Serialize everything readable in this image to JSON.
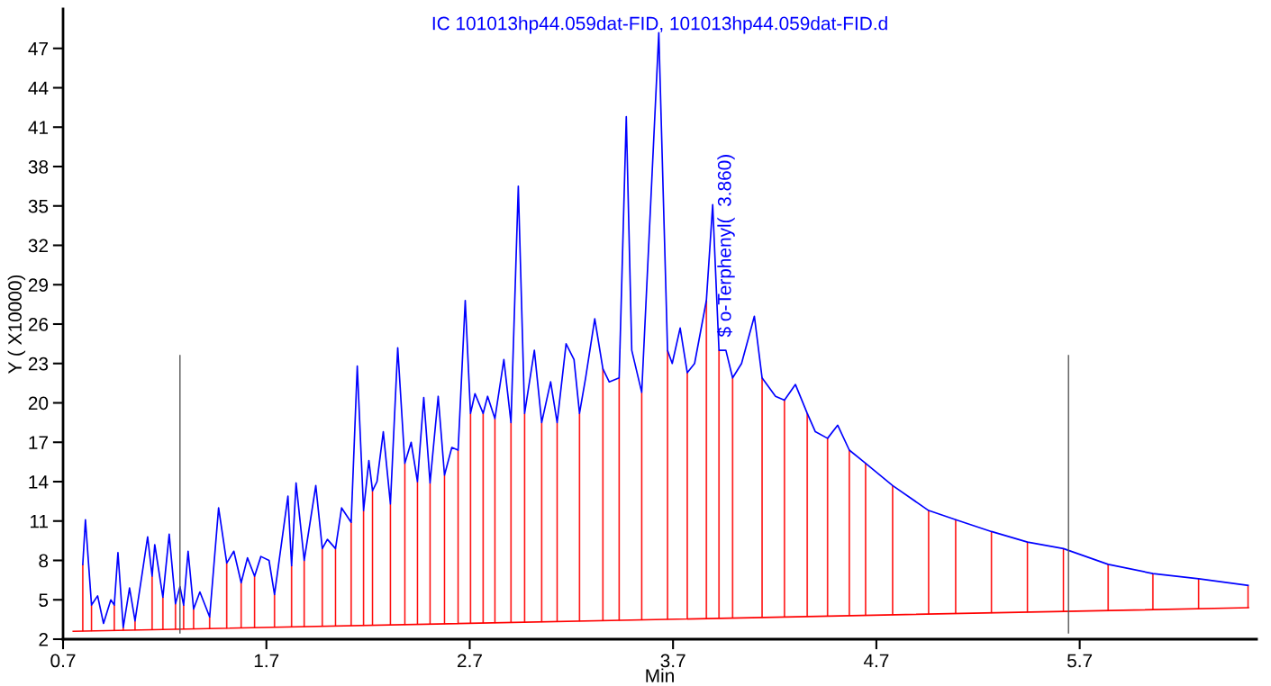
{
  "chart_data": {
    "type": "line",
    "title": "IC 101013hp44.059dat-FID, 101013hp44.059dat-FID.d",
    "xlabel": "Min",
    "ylabel": "Y ( X10000)",
    "xlim": [
      0.7,
      6.57
    ],
    "ylim": [
      2,
      50
    ],
    "xticks": [
      0.7,
      1.7,
      2.7,
      3.7,
      4.7,
      5.7
    ],
    "yticks": [
      2,
      5,
      8,
      11,
      14,
      17,
      20,
      23,
      26,
      29,
      32,
      35,
      38,
      41,
      44,
      47
    ],
    "grid": false,
    "legend": false,
    "marker": "none",
    "line_style": "solid",
    "series": [
      {
        "color": "#0000ff",
        "x": [
          0.797,
          0.81,
          0.84,
          0.87,
          0.899,
          0.935,
          0.952,
          0.97,
          0.996,
          1.027,
          1.054,
          1.089,
          1.116,
          1.138,
          1.151,
          1.191,
          1.222,
          1.253,
          1.275,
          1.293,
          1.315,
          1.342,
          1.373,
          1.421,
          1.465,
          1.505,
          1.54,
          1.576,
          1.607,
          1.642,
          1.673,
          1.713,
          1.74,
          1.806,
          1.824,
          1.846,
          1.886,
          1.943,
          1.975,
          2.0,
          2.04,
          2.07,
          2.117,
          2.147,
          2.178,
          2.204,
          2.222,
          2.244,
          2.275,
          2.31,
          2.346,
          2.381,
          2.412,
          2.443,
          2.474,
          2.505,
          2.545,
          2.576,
          2.612,
          2.643,
          2.678,
          2.704,
          2.726,
          2.766,
          2.788,
          2.824,
          2.868,
          2.903,
          2.939,
          2.97,
          3.018,
          3.054,
          3.098,
          3.13,
          3.174,
          3.213,
          3.24,
          3.27,
          3.315,
          3.355,
          3.386,
          3.435,
          3.47,
          3.497,
          3.546,
          3.63,
          3.673,
          3.696,
          3.735,
          3.77,
          3.806,
          3.864,
          3.895,
          3.926,
          3.96,
          3.993,
          4.037,
          4.1,
          4.138,
          4.204,
          4.248,
          4.302,
          4.36,
          4.4,
          4.46,
          4.51,
          4.567,
          4.647,
          4.78,
          4.957,
          5.09,
          5.266,
          5.443,
          5.62,
          5.84,
          6.06,
          6.285,
          6.528
        ],
        "values": [
          7.7,
          11.1,
          4.6,
          5.3,
          3.2,
          5.0,
          4.6,
          8.6,
          2.9,
          5.9,
          3.4,
          7.0,
          9.8,
          6.8,
          9.2,
          5.2,
          10.0,
          4.7,
          6.0,
          4.6,
          8.7,
          4.3,
          5.6,
          3.7,
          12.0,
          7.8,
          8.7,
          6.3,
          8.2,
          6.8,
          8.3,
          8.0,
          5.4,
          12.9,
          7.6,
          13.9,
          8.0,
          13.7,
          8.9,
          9.6,
          8.9,
          12.0,
          10.9,
          22.8,
          11.8,
          15.6,
          13.3,
          14.0,
          17.8,
          12.3,
          24.2,
          15.4,
          17.0,
          14.0,
          20.4,
          13.9,
          20.5,
          14.5,
          16.6,
          16.4,
          27.8,
          19.2,
          20.7,
          19.2,
          20.5,
          18.8,
          23.3,
          18.5,
          36.5,
          19.2,
          24.0,
          18.5,
          21.6,
          18.5,
          24.5,
          23.3,
          19.2,
          21.9,
          26.4,
          22.6,
          21.6,
          21.9,
          41.8,
          24.0,
          20.8,
          48.2,
          24.0,
          23.0,
          25.7,
          22.3,
          23.0,
          27.8,
          35.1,
          24.0,
          24.0,
          21.9,
          23.0,
          26.6,
          21.9,
          20.5,
          20.2,
          21.4,
          19.2,
          17.8,
          17.3,
          18.3,
          16.4,
          15.4,
          13.7,
          11.8,
          11.1,
          10.2,
          9.4,
          8.9,
          7.7,
          7.0,
          6.6,
          6.1
        ]
      },
      {
        "type": "line",
        "color": "#ff0000",
        "x": [
          0.75,
          6.53
        ],
        "values": [
          2.6,
          4.4
        ]
      },
      {
        "type": "bar",
        "color": "#ff0000",
        "x": [
          0.797,
          0.84,
          0.952,
          0.996,
          1.054,
          1.138,
          1.191,
          1.253,
          1.293,
          1.342,
          1.421,
          1.505,
          1.576,
          1.642,
          1.74,
          1.824,
          1.886,
          1.975,
          2.04,
          2.117,
          2.178,
          2.222,
          2.31,
          2.381,
          2.443,
          2.505,
          2.576,
          2.643,
          2.704,
          2.766,
          2.824,
          2.903,
          2.97,
          3.054,
          3.13,
          3.24,
          3.355,
          3.435,
          3.546,
          3.673,
          3.77,
          3.864,
          3.926,
          3.993,
          4.138,
          4.248,
          4.36,
          4.46,
          4.567,
          4.647,
          4.78,
          4.957,
          5.09,
          5.266,
          5.443,
          5.62,
          5.84,
          6.06,
          6.285,
          6.528
        ],
        "base": [
          2.61,
          2.63,
          2.66,
          2.68,
          2.69,
          2.72,
          2.74,
          2.76,
          2.77,
          2.78,
          2.81,
          2.83,
          2.86,
          2.88,
          2.91,
          2.93,
          2.95,
          2.98,
          3.0,
          3.03,
          3.04,
          3.06,
          3.09,
          3.11,
          3.13,
          3.15,
          3.17,
          3.19,
          3.21,
          3.23,
          3.25,
          3.27,
          3.29,
          3.32,
          3.34,
          3.37,
          3.41,
          3.44,
          3.47,
          3.51,
          3.54,
          3.57,
          3.59,
          3.61,
          3.65,
          3.69,
          3.72,
          3.75,
          3.79,
          3.81,
          3.85,
          3.91,
          3.95,
          4.0,
          4.06,
          4.11,
          4.18,
          4.25,
          4.32,
          4.4
        ],
        "values": [
          5.09,
          1.97,
          1.94,
          0.22,
          0.71,
          4.08,
          2.46,
          1.94,
          1.83,
          1.52,
          0.89,
          4.97,
          3.44,
          3.92,
          2.49,
          4.67,
          5.05,
          5.92,
          5.9,
          7.87,
          8.76,
          10.24,
          9.21,
          12.29,
          10.87,
          10.75,
          11.33,
          13.21,
          15.99,
          15.97,
          15.55,
          15.23,
          15.91,
          15.18,
          15.16,
          15.83,
          19.19,
          18.46,
          17.33,
          20.49,
          18.76,
          24.23,
          20.41,
          18.29,
          18.25,
          16.51,
          15.48,
          13.55,
          12.61,
          11.59,
          9.85,
          7.89,
          7.15,
          6.2,
          5.34,
          4.79,
          3.52,
          2.75,
          2.28,
          1.7
        ]
      }
    ],
    "ref_lines": [
      {
        "axis": "x",
        "value": 1.275,
        "color": "#555555"
      },
      {
        "axis": "x",
        "value": 5.645,
        "color": "#555555"
      }
    ],
    "annotations": [
      {
        "text": "$ o-Terphenyl(  3.860)",
        "x": 3.96,
        "y": 24.0
      }
    ]
  }
}
